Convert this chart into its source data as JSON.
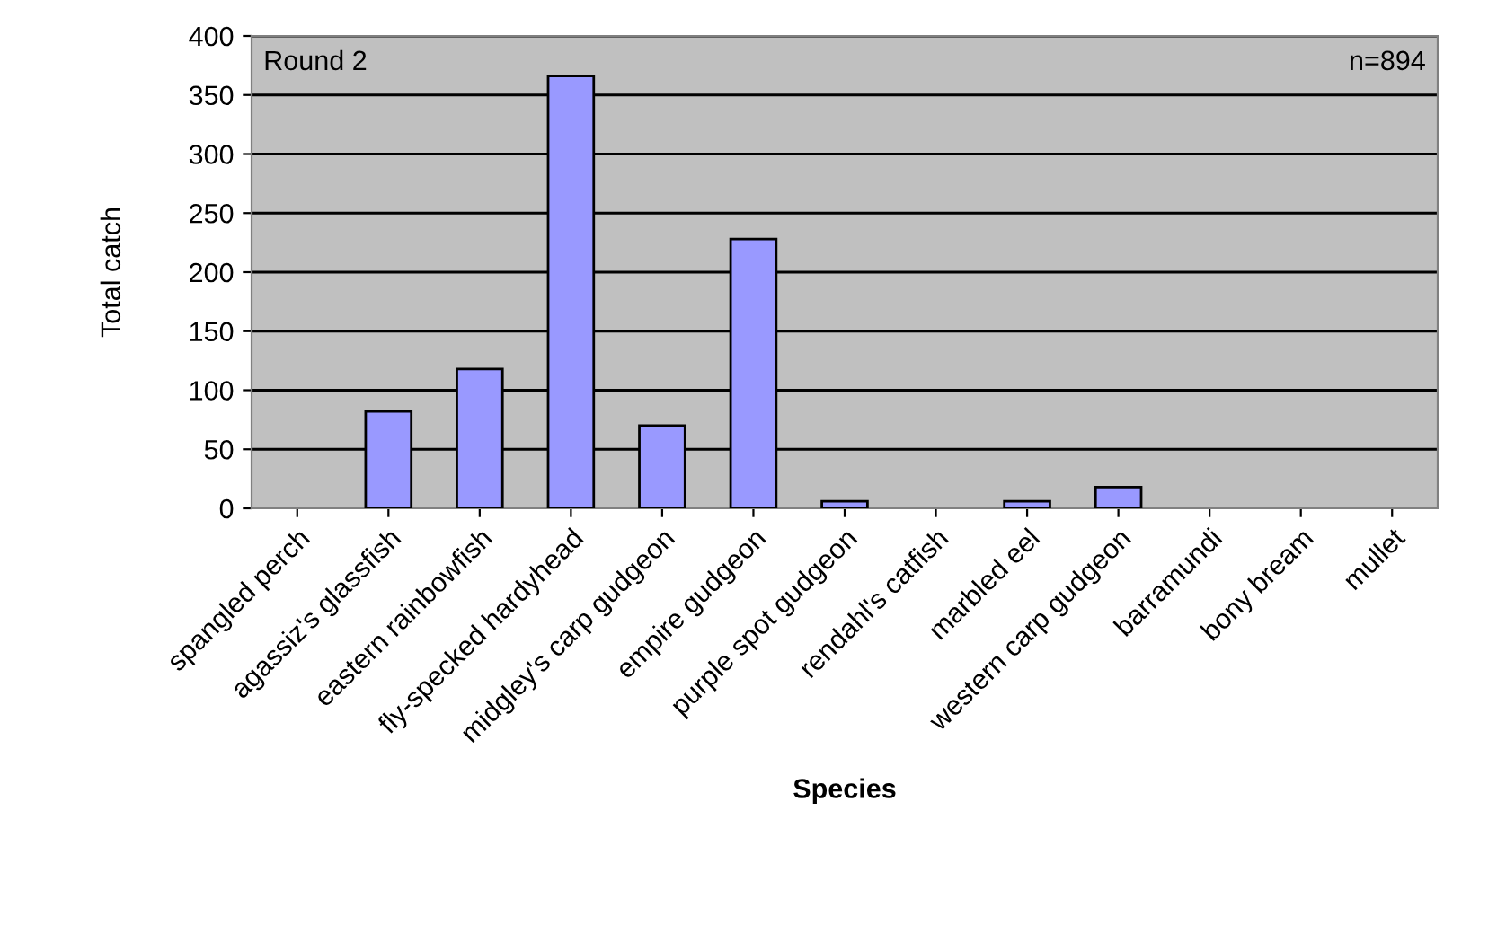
{
  "chart_data": {
    "type": "bar",
    "xlabel": "Species",
    "ylabel": "Total catch",
    "categories": [
      "spangled perch",
      "agassiz's glassfish",
      "eastern rainbowfish",
      "fly-specked hardyhead",
      "midgley's carp gudgeon",
      "empire gudgeon",
      "purple spot gudgeon",
      "rendahl's catfish",
      "marbled eel",
      "western carp gudgeon",
      "barramundi",
      "bony bream",
      "mullet"
    ],
    "values": [
      0,
      82,
      118,
      366,
      70,
      228,
      6,
      0,
      6,
      18,
      0,
      0,
      0
    ],
    "color": "#9999ff",
    "ylim": [
      0,
      400
    ],
    "yticks": [
      0,
      50,
      100,
      150,
      200,
      250,
      300,
      350,
      400
    ],
    "grid": "y",
    "legend": false,
    "annotations": [
      "Round 2",
      "n=894"
    ]
  }
}
